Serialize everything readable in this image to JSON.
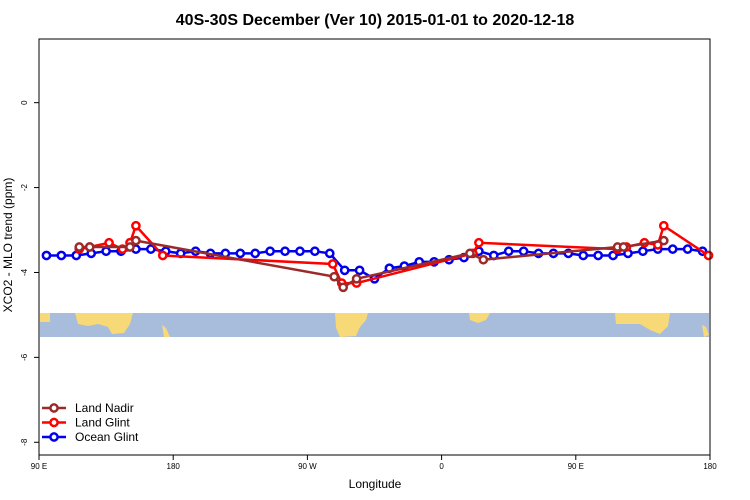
{
  "chart_data": {
    "type": "line",
    "title": "40S-30S December (Ver 10)   2015-01-01 to 2020-12-18",
    "xlabel": "Longitude",
    "ylabel": "XCO2 - MLO trend (ppm)",
    "xlim": [
      90,
      540
    ],
    "ylim": [
      -8.3,
      1.5
    ],
    "x_ticks": [
      {
        "value": 90,
        "label": "90 E"
      },
      {
        "value": 180,
        "label": "180"
      },
      {
        "value": 270,
        "label": "90 W"
      },
      {
        "value": 360,
        "label": "0"
      },
      {
        "value": 450,
        "label": "90 E"
      },
      {
        "value": 540,
        "label": "180"
      }
    ],
    "y_ticks": [
      {
        "value": 0,
        "label": "0"
      },
      {
        "value": -2,
        "label": "-2"
      },
      {
        "value": -4,
        "label": "-4"
      },
      {
        "value": -6,
        "label": "-6"
      },
      {
        "value": -8,
        "label": "-8"
      }
    ],
    "grid": false,
    "legend_position": "bottom-left",
    "series": [
      {
        "name": "Land Nadir",
        "color": "#9b2b2b",
        "points": [
          {
            "x": 117,
            "y": -3.4
          },
          {
            "x": 124,
            "y": -3.4
          },
          {
            "x": 151,
            "y": -3.4
          },
          {
            "x": 155,
            "y": -3.25
          },
          {
            "x": 288,
            "y": -4.1
          },
          {
            "x": 294,
            "y": -4.35
          },
          {
            "x": 303,
            "y": -4.15
          },
          {
            "x": 379,
            "y": -3.55
          },
          {
            "x": 388,
            "y": -3.7
          },
          {
            "x": 478,
            "y": -3.4
          },
          {
            "x": 482,
            "y": -3.4
          },
          {
            "x": 509,
            "y": -3.25
          }
        ]
      },
      {
        "name": "Land Glint",
        "color": "#ff0000",
        "points": [
          {
            "x": 117,
            "y": -3.45
          },
          {
            "x": 124,
            "y": -3.4
          },
          {
            "x": 137,
            "y": -3.3
          },
          {
            "x": 146,
            "y": -3.45
          },
          {
            "x": 151,
            "y": -3.3
          },
          {
            "x": 155,
            "y": -2.9
          },
          {
            "x": 173,
            "y": -3.6
          },
          {
            "x": 287,
            "y": -3.8
          },
          {
            "x": 293,
            "y": -4.25
          },
          {
            "x": 303,
            "y": -4.25
          },
          {
            "x": 381,
            "y": -3.55
          },
          {
            "x": 385,
            "y": -3.3
          },
          {
            "x": 478,
            "y": -3.45
          },
          {
            "x": 484,
            "y": -3.4
          },
          {
            "x": 496,
            "y": -3.3
          },
          {
            "x": 505,
            "y": -3.35
          },
          {
            "x": 509,
            "y": -2.9
          },
          {
            "x": 539,
            "y": -3.6
          }
        ]
      },
      {
        "name": "Ocean Glint",
        "color": "#0000ee",
        "points": [
          {
            "x": 95,
            "y": -3.6
          },
          {
            "x": 105,
            "y": -3.6
          },
          {
            "x": 115,
            "y": -3.6
          },
          {
            "x": 125,
            "y": -3.55
          },
          {
            "x": 135,
            "y": -3.5
          },
          {
            "x": 145,
            "y": -3.5
          },
          {
            "x": 155,
            "y": -3.45
          },
          {
            "x": 165,
            "y": -3.45
          },
          {
            "x": 175,
            "y": -3.5
          },
          {
            "x": 185,
            "y": -3.55
          },
          {
            "x": 195,
            "y": -3.5
          },
          {
            "x": 205,
            "y": -3.55
          },
          {
            "x": 215,
            "y": -3.55
          },
          {
            "x": 225,
            "y": -3.55
          },
          {
            "x": 235,
            "y": -3.55
          },
          {
            "x": 245,
            "y": -3.5
          },
          {
            "x": 255,
            "y": -3.5
          },
          {
            "x": 265,
            "y": -3.5
          },
          {
            "x": 275,
            "y": -3.5
          },
          {
            "x": 285,
            "y": -3.55
          },
          {
            "x": 295,
            "y": -3.95
          },
          {
            "x": 305,
            "y": -3.95
          },
          {
            "x": 315,
            "y": -4.15
          },
          {
            "x": 325,
            "y": -3.9
          },
          {
            "x": 335,
            "y": -3.85
          },
          {
            "x": 345,
            "y": -3.75
          },
          {
            "x": 355,
            "y": -3.75
          },
          {
            "x": 365,
            "y": -3.7
          },
          {
            "x": 375,
            "y": -3.65
          },
          {
            "x": 385,
            "y": -3.5
          },
          {
            "x": 395,
            "y": -3.6
          },
          {
            "x": 405,
            "y": -3.5
          },
          {
            "x": 415,
            "y": -3.5
          },
          {
            "x": 425,
            "y": -3.55
          },
          {
            "x": 435,
            "y": -3.55
          },
          {
            "x": 445,
            "y": -3.55
          },
          {
            "x": 455,
            "y": -3.6
          },
          {
            "x": 465,
            "y": -3.6
          },
          {
            "x": 475,
            "y": -3.6
          },
          {
            "x": 485,
            "y": -3.55
          },
          {
            "x": 495,
            "y": -3.5
          },
          {
            "x": 505,
            "y": -3.45
          },
          {
            "x": 515,
            "y": -3.45
          },
          {
            "x": 525,
            "y": -3.45
          },
          {
            "x": 535,
            "y": -3.5
          }
        ]
      }
    ]
  },
  "map_strip": {
    "lat_range": [
      -40,
      -30
    ],
    "ocean_color": "#a8bcdc",
    "land_color": "#f8d977"
  }
}
